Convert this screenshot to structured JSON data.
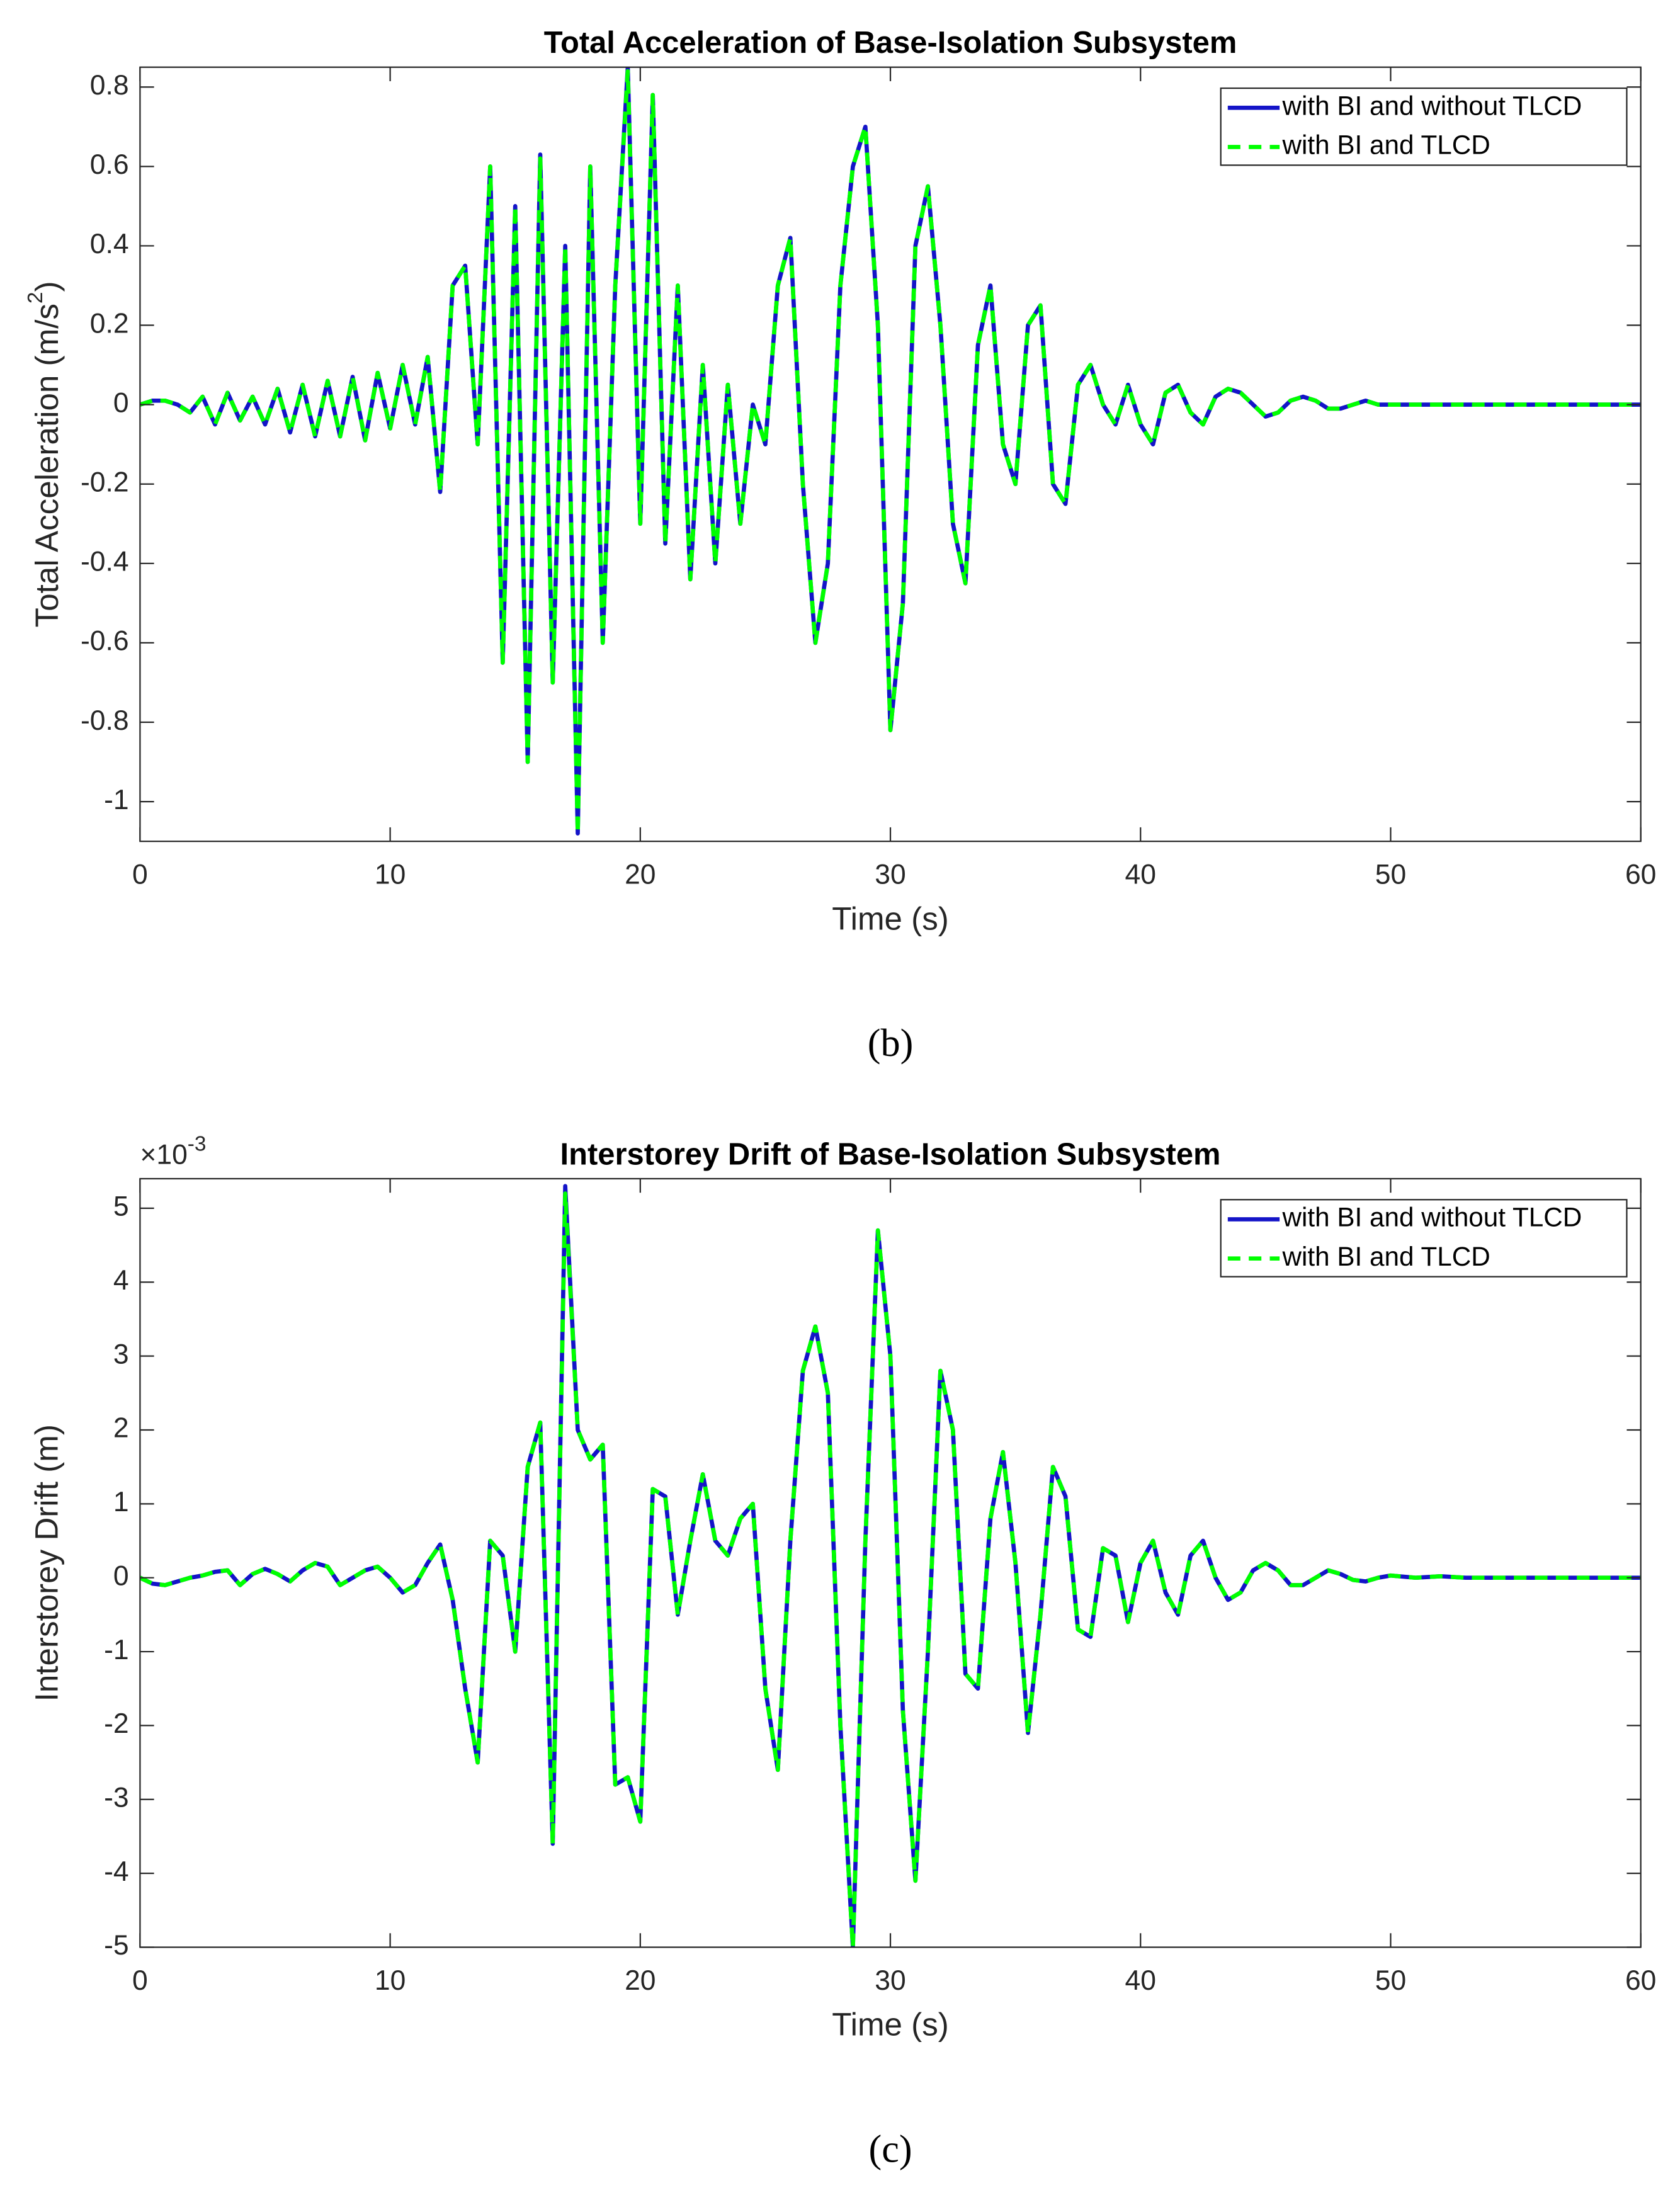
{
  "chart_data": [
    {
      "type": "line",
      "title": "Total Acceleration of Base-Isolation Subsystem",
      "x_label": "Time (s)",
      "y_label": {
        "text": "Total Acceleration (m/s",
        "sup": "2",
        "tail": ")"
      },
      "caption": "(b)",
      "legend": "upper right",
      "grid": false,
      "xlim": [
        0,
        60
      ],
      "xticks": [
        0,
        10,
        20,
        30,
        40,
        50,
        60
      ],
      "ylim": [
        -1.1,
        0.85
      ],
      "yticks": [
        -1,
        -0.8,
        -0.6,
        -0.4,
        -0.2,
        0,
        0.2,
        0.4,
        0.6,
        0.8
      ],
      "x": [
        0,
        0.5,
        1,
        1.5,
        2,
        2.5,
        3,
        3.5,
        4,
        4.5,
        5,
        5.5,
        6,
        6.5,
        7,
        7.5,
        8,
        8.5,
        9,
        9.5,
        10,
        10.5,
        11,
        11.5,
        12,
        12.5,
        13,
        13.5,
        14,
        14.5,
        15,
        15.5,
        16,
        16.5,
        17,
        17.5,
        18,
        18.5,
        19,
        19.5,
        20,
        20.5,
        21,
        21.5,
        22,
        22.5,
        23,
        23.5,
        24,
        24.5,
        25,
        25.5,
        26,
        26.5,
        27,
        27.5,
        28,
        28.5,
        29,
        29.5,
        30,
        30.5,
        31,
        31.5,
        32,
        32.5,
        33,
        33.5,
        34,
        34.5,
        35,
        35.5,
        36,
        36.5,
        37,
        37.5,
        38,
        38.5,
        39,
        39.5,
        40,
        40.5,
        41,
        41.5,
        42,
        42.5,
        43,
        43.5,
        44,
        44.5,
        45,
        45.5,
        46,
        46.5,
        47,
        47.5,
        48,
        48.5,
        49,
        49.5,
        50,
        51,
        52,
        53,
        54,
        55,
        56,
        57,
        58,
        59,
        60
      ],
      "series": [
        {
          "name": "with BI and without TLCD",
          "color": "#1414c8",
          "style": "solid",
          "values": [
            0,
            0.01,
            0.01,
            0,
            -0.02,
            0.02,
            -0.05,
            0.03,
            -0.04,
            0.02,
            -0.05,
            0.04,
            -0.07,
            0.05,
            -0.08,
            0.06,
            -0.08,
            0.07,
            -0.09,
            0.08,
            -0.06,
            0.1,
            -0.05,
            0.12,
            -0.22,
            0.3,
            0.35,
            -0.1,
            0.6,
            -0.65,
            0.5,
            -0.9,
            0.63,
            -0.7,
            0.4,
            -1.08,
            0.6,
            -0.6,
            0.3,
            0.85,
            -0.3,
            0.78,
            -0.35,
            0.3,
            -0.44,
            0.1,
            -0.4,
            0.05,
            -0.3,
            0,
            -0.1,
            0.3,
            0.42,
            -0.2,
            -0.6,
            -0.4,
            0.3,
            0.6,
            0.7,
            0.2,
            -0.82,
            -0.5,
            0.4,
            0.55,
            0.2,
            -0.3,
            -0.45,
            0.15,
            0.3,
            -0.1,
            -0.2,
            0.2,
            0.25,
            -0.2,
            -0.25,
            0.05,
            0.1,
            0,
            -0.05,
            0.05,
            -0.05,
            -0.1,
            0.03,
            0.05,
            -0.02,
            -0.05,
            0.02,
            0.04,
            0.03,
            0,
            -0.03,
            -0.02,
            0.01,
            0.02,
            0.01,
            -0.01,
            -0.01,
            0,
            0.01,
            0,
            0,
            0,
            0,
            0,
            0,
            0,
            0,
            0,
            0,
            0,
            0
          ]
        },
        {
          "name": "with BI and TLCD",
          "color": "#00ff00",
          "style": "dashed",
          "values": [
            0,
            0.01,
            0.01,
            0,
            -0.02,
            0.02,
            -0.05,
            0.03,
            -0.04,
            0.02,
            -0.05,
            0.04,
            -0.07,
            0.05,
            -0.08,
            0.06,
            -0.08,
            0.07,
            -0.09,
            0.08,
            -0.06,
            0.1,
            -0.05,
            0.12,
            -0.22,
            0.3,
            0.35,
            -0.1,
            0.6,
            -0.65,
            0.5,
            -0.9,
            0.62,
            -0.7,
            0.4,
            -1.08,
            0.6,
            -0.6,
            0.3,
            0.84,
            -0.3,
            0.78,
            -0.35,
            0.3,
            -0.44,
            0.1,
            -0.4,
            0.05,
            -0.3,
            0,
            -0.1,
            0.3,
            0.42,
            -0.2,
            -0.6,
            -0.4,
            0.3,
            0.6,
            0.7,
            0.2,
            -0.82,
            -0.5,
            0.4,
            0.55,
            0.2,
            -0.3,
            -0.45,
            0.15,
            0.3,
            -0.1,
            -0.2,
            0.2,
            0.25,
            -0.2,
            -0.25,
            0.05,
            0.1,
            0,
            -0.05,
            0.05,
            -0.05,
            -0.1,
            0.03,
            0.05,
            -0.02,
            -0.05,
            0.02,
            0.04,
            0.03,
            0,
            -0.03,
            -0.02,
            0.01,
            0.02,
            0.01,
            -0.01,
            -0.01,
            0,
            0.01,
            0,
            0,
            0,
            0,
            0,
            0,
            0,
            0,
            0,
            0,
            0,
            0
          ]
        }
      ]
    },
    {
      "type": "line",
      "title": "Interstorey Drift of Base-Isolation Subsystem",
      "x_label": "Time (s)",
      "y_label": "Interstorey Drift (m)",
      "y_exponent": {
        "base": "×10",
        "power": "-3"
      },
      "caption": "(c)",
      "legend": "upper right",
      "grid": false,
      "xlim": [
        0,
        60
      ],
      "xticks": [
        0,
        10,
        20,
        30,
        40,
        50,
        60
      ],
      "ylim": [
        -5,
        5.4
      ],
      "yticks": [
        -5,
        -4,
        -3,
        -2,
        -1,
        0,
        1,
        2,
        3,
        4,
        5
      ],
      "x": [
        0,
        0.5,
        1,
        1.5,
        2,
        2.5,
        3,
        3.5,
        4,
        4.5,
        5,
        5.5,
        6,
        6.5,
        7,
        7.5,
        8,
        8.5,
        9,
        9.5,
        10,
        10.5,
        11,
        11.5,
        12,
        12.5,
        13,
        13.5,
        14,
        14.5,
        15,
        15.5,
        16,
        16.5,
        17,
        17.5,
        18,
        18.5,
        19,
        19.5,
        20,
        20.5,
        21,
        21.5,
        22,
        22.5,
        23,
        23.5,
        24,
        24.5,
        25,
        25.5,
        26,
        26.5,
        27,
        27.5,
        28,
        28.5,
        29,
        29.5,
        30,
        30.5,
        31,
        31.5,
        32,
        32.5,
        33,
        33.5,
        34,
        34.5,
        35,
        35.5,
        36,
        36.5,
        37,
        37.5,
        38,
        38.5,
        39,
        39.5,
        40,
        40.5,
        41,
        41.5,
        42,
        42.5,
        43,
        43.5,
        44,
        44.5,
        45,
        45.5,
        46,
        46.5,
        47,
        47.5,
        48,
        48.5,
        49,
        49.5,
        50,
        51,
        52,
        53,
        54,
        55,
        56,
        57,
        58,
        59,
        60
      ],
      "series": [
        {
          "name": "with BI and without TLCD",
          "color": "#1414c8",
          "style": "solid",
          "values": [
            0,
            -0.08,
            -0.1,
            -0.05,
            0,
            0.03,
            0.08,
            0.1,
            -0.1,
            0.05,
            0.12,
            0.05,
            -0.05,
            0.1,
            0.2,
            0.15,
            -0.1,
            0,
            0.1,
            0.15,
            0,
            -0.2,
            -0.1,
            0.2,
            0.45,
            -0.3,
            -1.5,
            -2.5,
            0.5,
            0.3,
            -1,
            1.5,
            2.1,
            -3.6,
            5.3,
            2,
            1.6,
            1.8,
            -2.8,
            -2.7,
            -3.3,
            1.2,
            1.1,
            -0.5,
            0.5,
            1.4,
            0.5,
            0.3,
            0.8,
            1,
            -1.5,
            -2.6,
            0.5,
            2.8,
            3.4,
            2.5,
            -2,
            -5,
            0.5,
            4.7,
            3,
            -1.8,
            -4.1,
            -1,
            2.8,
            2,
            -1.3,
            -1.5,
            0.8,
            1.7,
            0.2,
            -2.1,
            -0.5,
            1.5,
            1.1,
            -0.7,
            -0.8,
            0.4,
            0.3,
            -0.6,
            0.2,
            0.5,
            -0.2,
            -0.5,
            0.3,
            0.5,
            0,
            -0.3,
            -0.2,
            0.1,
            0.2,
            0.1,
            -0.1,
            -0.1,
            0,
            0.1,
            0.05,
            -0.03,
            -0.05,
            0,
            0.03,
            0,
            0.02,
            0,
            0,
            0,
            0,
            0,
            0,
            0,
            0
          ]
        },
        {
          "name": "with BI and TLCD",
          "color": "#00ff00",
          "style": "dashed",
          "values": [
            0,
            -0.08,
            -0.1,
            -0.05,
            0,
            0.03,
            0.08,
            0.1,
            -0.1,
            0.05,
            0.12,
            0.05,
            -0.05,
            0.1,
            0.2,
            0.15,
            -0.1,
            0,
            0.1,
            0.15,
            0,
            -0.2,
            -0.1,
            0.2,
            0.45,
            -0.3,
            -1.5,
            -2.5,
            0.5,
            0.3,
            -1,
            1.5,
            2.1,
            -3.6,
            5.2,
            2,
            1.6,
            1.8,
            -2.8,
            -2.7,
            -3.3,
            1.2,
            1.1,
            -0.5,
            0.5,
            1.4,
            0.5,
            0.3,
            0.8,
            1,
            -1.5,
            -2.6,
            0.5,
            2.8,
            3.4,
            2.5,
            -2,
            -5,
            0.5,
            4.7,
            3,
            -1.8,
            -4.1,
            -1,
            2.8,
            2,
            -1.3,
            -1.5,
            0.8,
            1.7,
            0.2,
            -2.1,
            -0.5,
            1.5,
            1.1,
            -0.7,
            -0.8,
            0.4,
            0.3,
            -0.6,
            0.2,
            0.5,
            -0.2,
            -0.5,
            0.3,
            0.5,
            0,
            -0.3,
            -0.2,
            0.1,
            0.2,
            0.1,
            -0.1,
            -0.1,
            0,
            0.1,
            0.05,
            -0.03,
            -0.05,
            0,
            0.03,
            0,
            0.02,
            0,
            0,
            0,
            0,
            0,
            0,
            0,
            0
          ]
        }
      ]
    }
  ]
}
